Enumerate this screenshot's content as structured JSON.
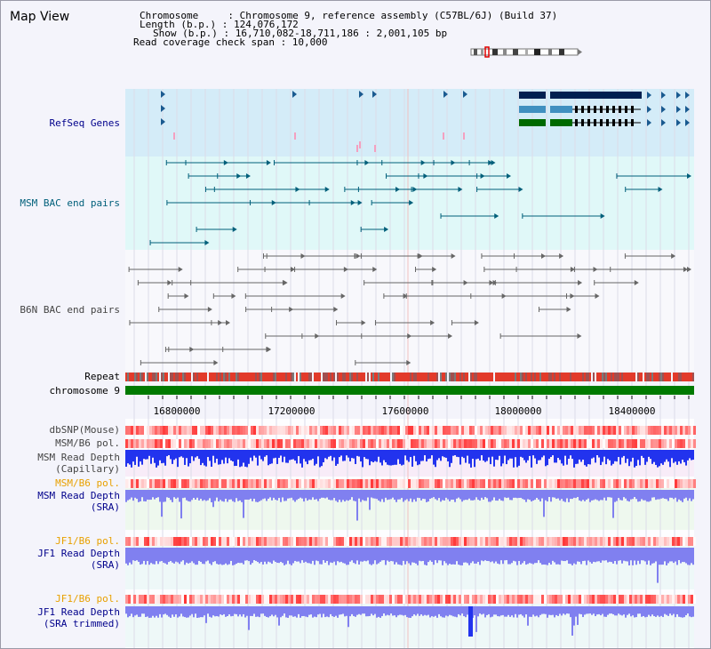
{
  "header": {
    "title": "Map View",
    "info_lines": [
      "Chromosome     : Chromosome 9, reference assembly (C57BL/6J) (Build 37)",
      "Length (b.p.) : 124,076,172",
      "Show (b.p.) : 16,710,082-18,711,186 : 2,001,105 bp",
      "Read coverage check span : 10,000"
    ]
  },
  "tracks": {
    "refseq": "RefSeq Genes",
    "msm_bac": "MSM BAC end pairs",
    "b6n_bac": "B6N BAC end pairs",
    "repeat": "Repeat",
    "chromosome": "chromosome 9",
    "dbsnp": "dbSNP(Mouse)",
    "msm_pol_1": "MSM/B6 pol.",
    "msm_depth_cap_1": "MSM Read Depth",
    "msm_depth_cap_2": "(Capillary)",
    "msm_pol_2": "MSM/B6 pol.",
    "msm_depth_sra_1": "MSM Read Depth",
    "msm_depth_sra_2": "(SRA)",
    "jf1_pol_1": "JF1/B6 pol.",
    "jf1_depth_sra_1": "JF1 Read Depth",
    "jf1_depth_sra_2": "(SRA)",
    "jf1_pol_2": "JF1/B6 pol.",
    "jf1_depth_trim_1": "JF1 Read Depth",
    "jf1_depth_trim_2": "(SRA trimmed)"
  },
  "axis": {
    "ticks": [
      "16800000",
      "17200000",
      "17600000",
      "18000000",
      "18400000"
    ]
  },
  "colors": {
    "refseq_bg": "#d4ecf8",
    "msm_bg": "#e0f8f8",
    "bac_line": "#005f7a",
    "b6n_line": "#666666",
    "repeat_red": "#e23a2a",
    "chromosome_green": "#007a00",
    "depth_blue": "#2233ee",
    "depth_light": "#8080f0"
  }
}
